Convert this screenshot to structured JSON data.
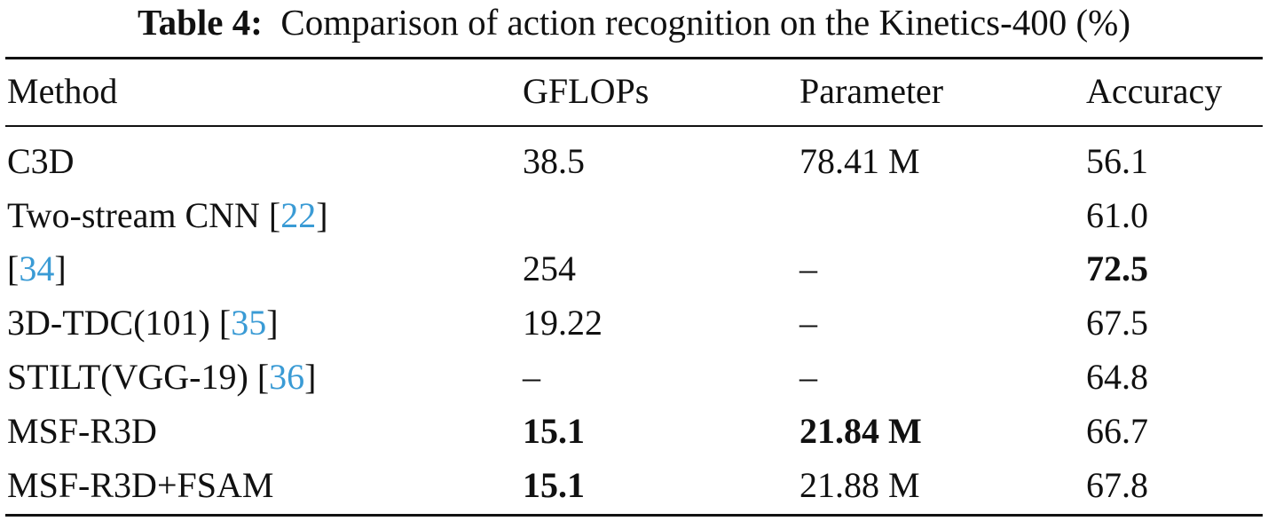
{
  "caption": {
    "label": "Table 4:",
    "text": "Comparison of action recognition on the Kinetics-400 (%)"
  },
  "header": [
    "Method",
    "GFLOPs",
    "Parameter",
    "Accuracy"
  ],
  "rows": [
    {
      "method": "C3D",
      "ref": "",
      "gflops": "38.5",
      "parameter": "78.41 M",
      "accuracy": "56.1"
    },
    {
      "method": "Two-stream CNN",
      "ref": "22",
      "gflops": "",
      "parameter": "",
      "accuracy": "61.0"
    },
    {
      "method": "",
      "ref": "34",
      "gflops": "254",
      "parameter": "–",
      "accuracy": "72.5"
    },
    {
      "method": "3D-TDC(101)",
      "ref": "35",
      "gflops": "19.22",
      "parameter": "–",
      "accuracy": "67.5"
    },
    {
      "method": "STILT(VGG-19)",
      "ref": "36",
      "gflops": "–",
      "parameter": "–",
      "accuracy": "64.8"
    },
    {
      "method": "MSF-R3D",
      "ref": "",
      "gflops": "15.1",
      "parameter": "21.84 M",
      "accuracy": "66.7"
    },
    {
      "method": "MSF-R3D+FSAM",
      "ref": "",
      "gflops": "15.1",
      "parameter": "21.88 M",
      "accuracy": "67.8"
    }
  ],
  "colors": {
    "text": "#111111",
    "citation": "#3a9bd5"
  }
}
